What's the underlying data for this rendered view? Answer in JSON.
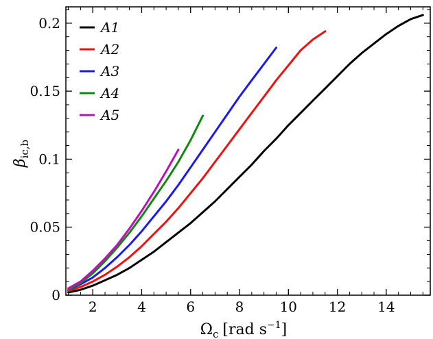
{
  "chart_data": {
    "type": "line",
    "xlabel": "Ω",
    "xlabel_sub": "c",
    "xlabel_unit": "[rad s",
    "xlabel_unit_sup": "−1",
    "xlabel_unit_close": "]",
    "ylabel": "β",
    "ylabel_sub": "ic,b",
    "xlim": [
      0.9,
      15.8
    ],
    "ylim": [
      0,
      0.212
    ],
    "xticks": [
      2,
      4,
      6,
      8,
      10,
      12,
      14
    ],
    "xtick_labels": [
      "2",
      "4",
      "6",
      "8",
      "10",
      "12",
      "14"
    ],
    "yticks": [
      0,
      0.05,
      0.1,
      0.15,
      0.2
    ],
    "ytick_labels": [
      "0",
      "0.05",
      "0.1",
      "0.15",
      "0.2"
    ],
    "grid": false,
    "legend_position": "top-left",
    "series": [
      {
        "name": "A1",
        "color": "#000000",
        "x": [
          1.0,
          1.5,
          2.0,
          2.5,
          3.0,
          3.5,
          4.0,
          4.5,
          5.0,
          5.5,
          6.0,
          6.5,
          7.0,
          7.5,
          8.0,
          8.5,
          9.0,
          9.5,
          10.0,
          10.5,
          11.0,
          11.5,
          12.0,
          12.5,
          13.0,
          13.5,
          14.0,
          14.5,
          15.0,
          15.5
        ],
        "y": [
          0.002,
          0.004,
          0.007,
          0.011,
          0.015,
          0.02,
          0.026,
          0.032,
          0.039,
          0.046,
          0.053,
          0.061,
          0.069,
          0.078,
          0.087,
          0.096,
          0.106,
          0.115,
          0.125,
          0.134,
          0.143,
          0.152,
          0.161,
          0.17,
          0.178,
          0.185,
          0.192,
          0.198,
          0.203,
          0.206
        ]
      },
      {
        "name": "A2",
        "color": "#ee1111",
        "x": [
          1.0,
          1.5,
          2.0,
          2.5,
          3.0,
          3.5,
          4.0,
          4.5,
          5.0,
          5.5,
          6.0,
          6.5,
          7.0,
          7.5,
          8.0,
          8.5,
          9.0,
          9.5,
          10.0,
          10.5,
          11.0,
          11.5
        ],
        "y": [
          0.003,
          0.006,
          0.01,
          0.015,
          0.021,
          0.028,
          0.036,
          0.045,
          0.054,
          0.064,
          0.075,
          0.086,
          0.098,
          0.11,
          0.122,
          0.134,
          0.146,
          0.158,
          0.169,
          0.18,
          0.188,
          0.194
        ]
      },
      {
        "name": "A3",
        "color": "#1a1aee",
        "x": [
          1.0,
          1.5,
          2.0,
          2.5,
          3.0,
          3.5,
          4.0,
          4.5,
          5.0,
          5.5,
          6.0,
          6.5,
          7.0,
          7.5,
          8.0,
          8.5,
          9.0,
          9.5
        ],
        "y": [
          0.004,
          0.008,
          0.013,
          0.02,
          0.028,
          0.037,
          0.047,
          0.058,
          0.069,
          0.081,
          0.094,
          0.107,
          0.12,
          0.133,
          0.146,
          0.158,
          0.17,
          0.182
        ]
      },
      {
        "name": "A4",
        "color": "#118811",
        "x": [
          1.0,
          1.5,
          2.0,
          2.5,
          3.0,
          3.5,
          4.0,
          4.5,
          5.0,
          5.5,
          6.0,
          6.5
        ],
        "y": [
          0.004,
          0.009,
          0.016,
          0.025,
          0.035,
          0.046,
          0.058,
          0.071,
          0.084,
          0.098,
          0.114,
          0.132
        ]
      },
      {
        "name": "A5",
        "color": "#bb11bb",
        "x": [
          1.0,
          1.5,
          2.0,
          2.5,
          3.0,
          3.5,
          4.0,
          4.5,
          5.0,
          5.5
        ],
        "y": [
          0.005,
          0.01,
          0.018,
          0.027,
          0.037,
          0.049,
          0.062,
          0.076,
          0.091,
          0.107
        ]
      }
    ]
  }
}
